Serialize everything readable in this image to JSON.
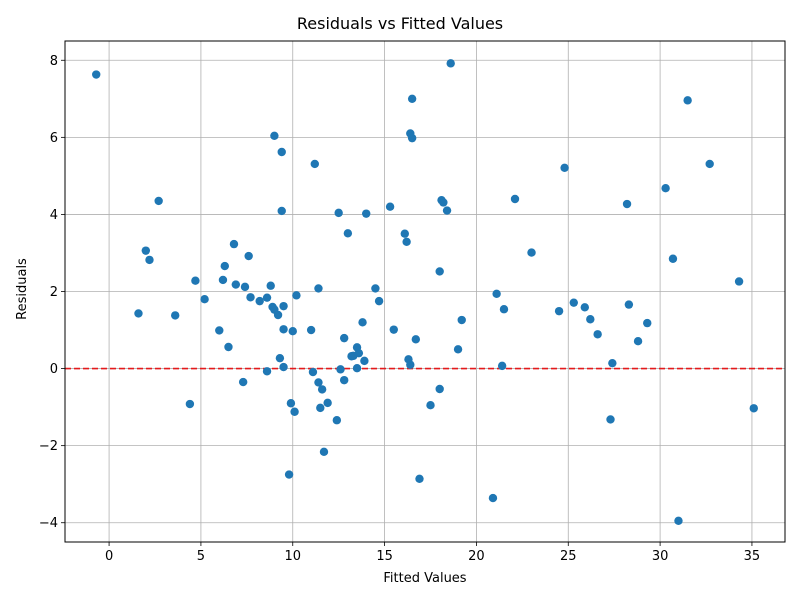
{
  "chart_data": {
    "type": "scatter",
    "title": "Residuals vs Fitted Values",
    "xlabel": "Fitted Values",
    "ylabel": "Residuals",
    "xlim": [
      -2.4,
      36.8
    ],
    "ylim": [
      -4.5,
      8.5
    ],
    "xticks": [
      0,
      5,
      10,
      15,
      20,
      25,
      30,
      35
    ],
    "yticks": [
      -4,
      -2,
      0,
      2,
      4,
      6,
      8
    ],
    "xtick_labels": [
      "0",
      "5",
      "10",
      "15",
      "20",
      "25",
      "30",
      "35"
    ],
    "ytick_labels": [
      "−4",
      "−2",
      "0",
      "2",
      "4",
      "6",
      "8"
    ],
    "grid": true,
    "reference_line": {
      "y": 0,
      "color": "#e41a1c",
      "style": "dashed"
    },
    "point_color": "#1f77b4",
    "points": [
      [
        -0.7,
        7.63
      ],
      [
        1.6,
        1.43
      ],
      [
        2.0,
        3.06
      ],
      [
        2.2,
        2.82
      ],
      [
        2.7,
        4.35
      ],
      [
        3.6,
        1.38
      ],
      [
        4.4,
        -0.92
      ],
      [
        4.7,
        2.28
      ],
      [
        5.2,
        1.8
      ],
      [
        6.0,
        0.99
      ],
      [
        6.2,
        2.3
      ],
      [
        6.3,
        2.66
      ],
      [
        6.5,
        0.56
      ],
      [
        6.8,
        3.23
      ],
      [
        6.9,
        2.18
      ],
      [
        7.3,
        -0.35
      ],
      [
        7.4,
        2.12
      ],
      [
        7.6,
        2.92
      ],
      [
        7.7,
        1.85
      ],
      [
        8.2,
        1.75
      ],
      [
        8.6,
        1.84
      ],
      [
        8.6,
        -0.07
      ],
      [
        8.8,
        2.15
      ],
      [
        8.9,
        1.6
      ],
      [
        9.0,
        6.04
      ],
      [
        9.0,
        1.53
      ],
      [
        9.2,
        1.39
      ],
      [
        9.3,
        0.27
      ],
      [
        9.4,
        5.62
      ],
      [
        9.4,
        4.09
      ],
      [
        9.5,
        1.62
      ],
      [
        9.5,
        1.02
      ],
      [
        9.5,
        0.04
      ],
      [
        9.8,
        -2.75
      ],
      [
        9.9,
        -0.9
      ],
      [
        10.0,
        0.97
      ],
      [
        10.1,
        -1.12
      ],
      [
        10.2,
        1.9
      ],
      [
        11.0,
        1.0
      ],
      [
        11.1,
        -0.09
      ],
      [
        11.2,
        5.31
      ],
      [
        11.4,
        -0.36
      ],
      [
        11.4,
        2.08
      ],
      [
        11.5,
        -1.02
      ],
      [
        11.6,
        -0.54
      ],
      [
        11.7,
        -2.16
      ],
      [
        11.9,
        -0.89
      ],
      [
        12.4,
        -1.34
      ],
      [
        12.5,
        4.04
      ],
      [
        12.6,
        -0.02
      ],
      [
        12.8,
        0.79
      ],
      [
        12.8,
        -0.3
      ],
      [
        13.0,
        3.51
      ],
      [
        13.2,
        0.32
      ],
      [
        13.3,
        0.33
      ],
      [
        13.5,
        0.55
      ],
      [
        13.5,
        0.01
      ],
      [
        13.6,
        0.4
      ],
      [
        13.8,
        1.2
      ],
      [
        13.9,
        0.2
      ],
      [
        14.0,
        4.02
      ],
      [
        14.5,
        2.08
      ],
      [
        14.7,
        1.75
      ],
      [
        15.3,
        4.2
      ],
      [
        15.5,
        1.01
      ],
      [
        16.1,
        3.5
      ],
      [
        16.2,
        3.29
      ],
      [
        16.3,
        0.24
      ],
      [
        16.4,
        0.1
      ],
      [
        16.4,
        6.1
      ],
      [
        16.5,
        7.0
      ],
      [
        16.5,
        5.98
      ],
      [
        16.7,
        0.76
      ],
      [
        16.9,
        -2.86
      ],
      [
        17.5,
        -0.95
      ],
      [
        18.0,
        2.52
      ],
      [
        18.0,
        -0.53
      ],
      [
        18.1,
        4.37
      ],
      [
        18.2,
        4.31
      ],
      [
        18.4,
        4.1
      ],
      [
        18.6,
        7.92
      ],
      [
        19.0,
        0.5
      ],
      [
        19.2,
        1.26
      ],
      [
        20.9,
        -3.36
      ],
      [
        21.1,
        1.94
      ],
      [
        21.4,
        0.07
      ],
      [
        21.5,
        1.54
      ],
      [
        22.1,
        4.4
      ],
      [
        23.0,
        3.01
      ],
      [
        24.5,
        1.49
      ],
      [
        24.8,
        5.21
      ],
      [
        25.3,
        1.71
      ],
      [
        25.9,
        1.59
      ],
      [
        26.2,
        1.28
      ],
      [
        26.6,
        0.89
      ],
      [
        27.3,
        -1.32
      ],
      [
        27.4,
        0.14
      ],
      [
        28.2,
        4.27
      ],
      [
        28.3,
        1.66
      ],
      [
        28.8,
        0.71
      ],
      [
        29.3,
        1.18
      ],
      [
        30.3,
        4.68
      ],
      [
        30.7,
        2.85
      ],
      [
        31.0,
        -3.95
      ],
      [
        31.5,
        6.96
      ],
      [
        32.7,
        5.31
      ],
      [
        34.3,
        2.26
      ],
      [
        35.1,
        -1.03
      ]
    ]
  }
}
